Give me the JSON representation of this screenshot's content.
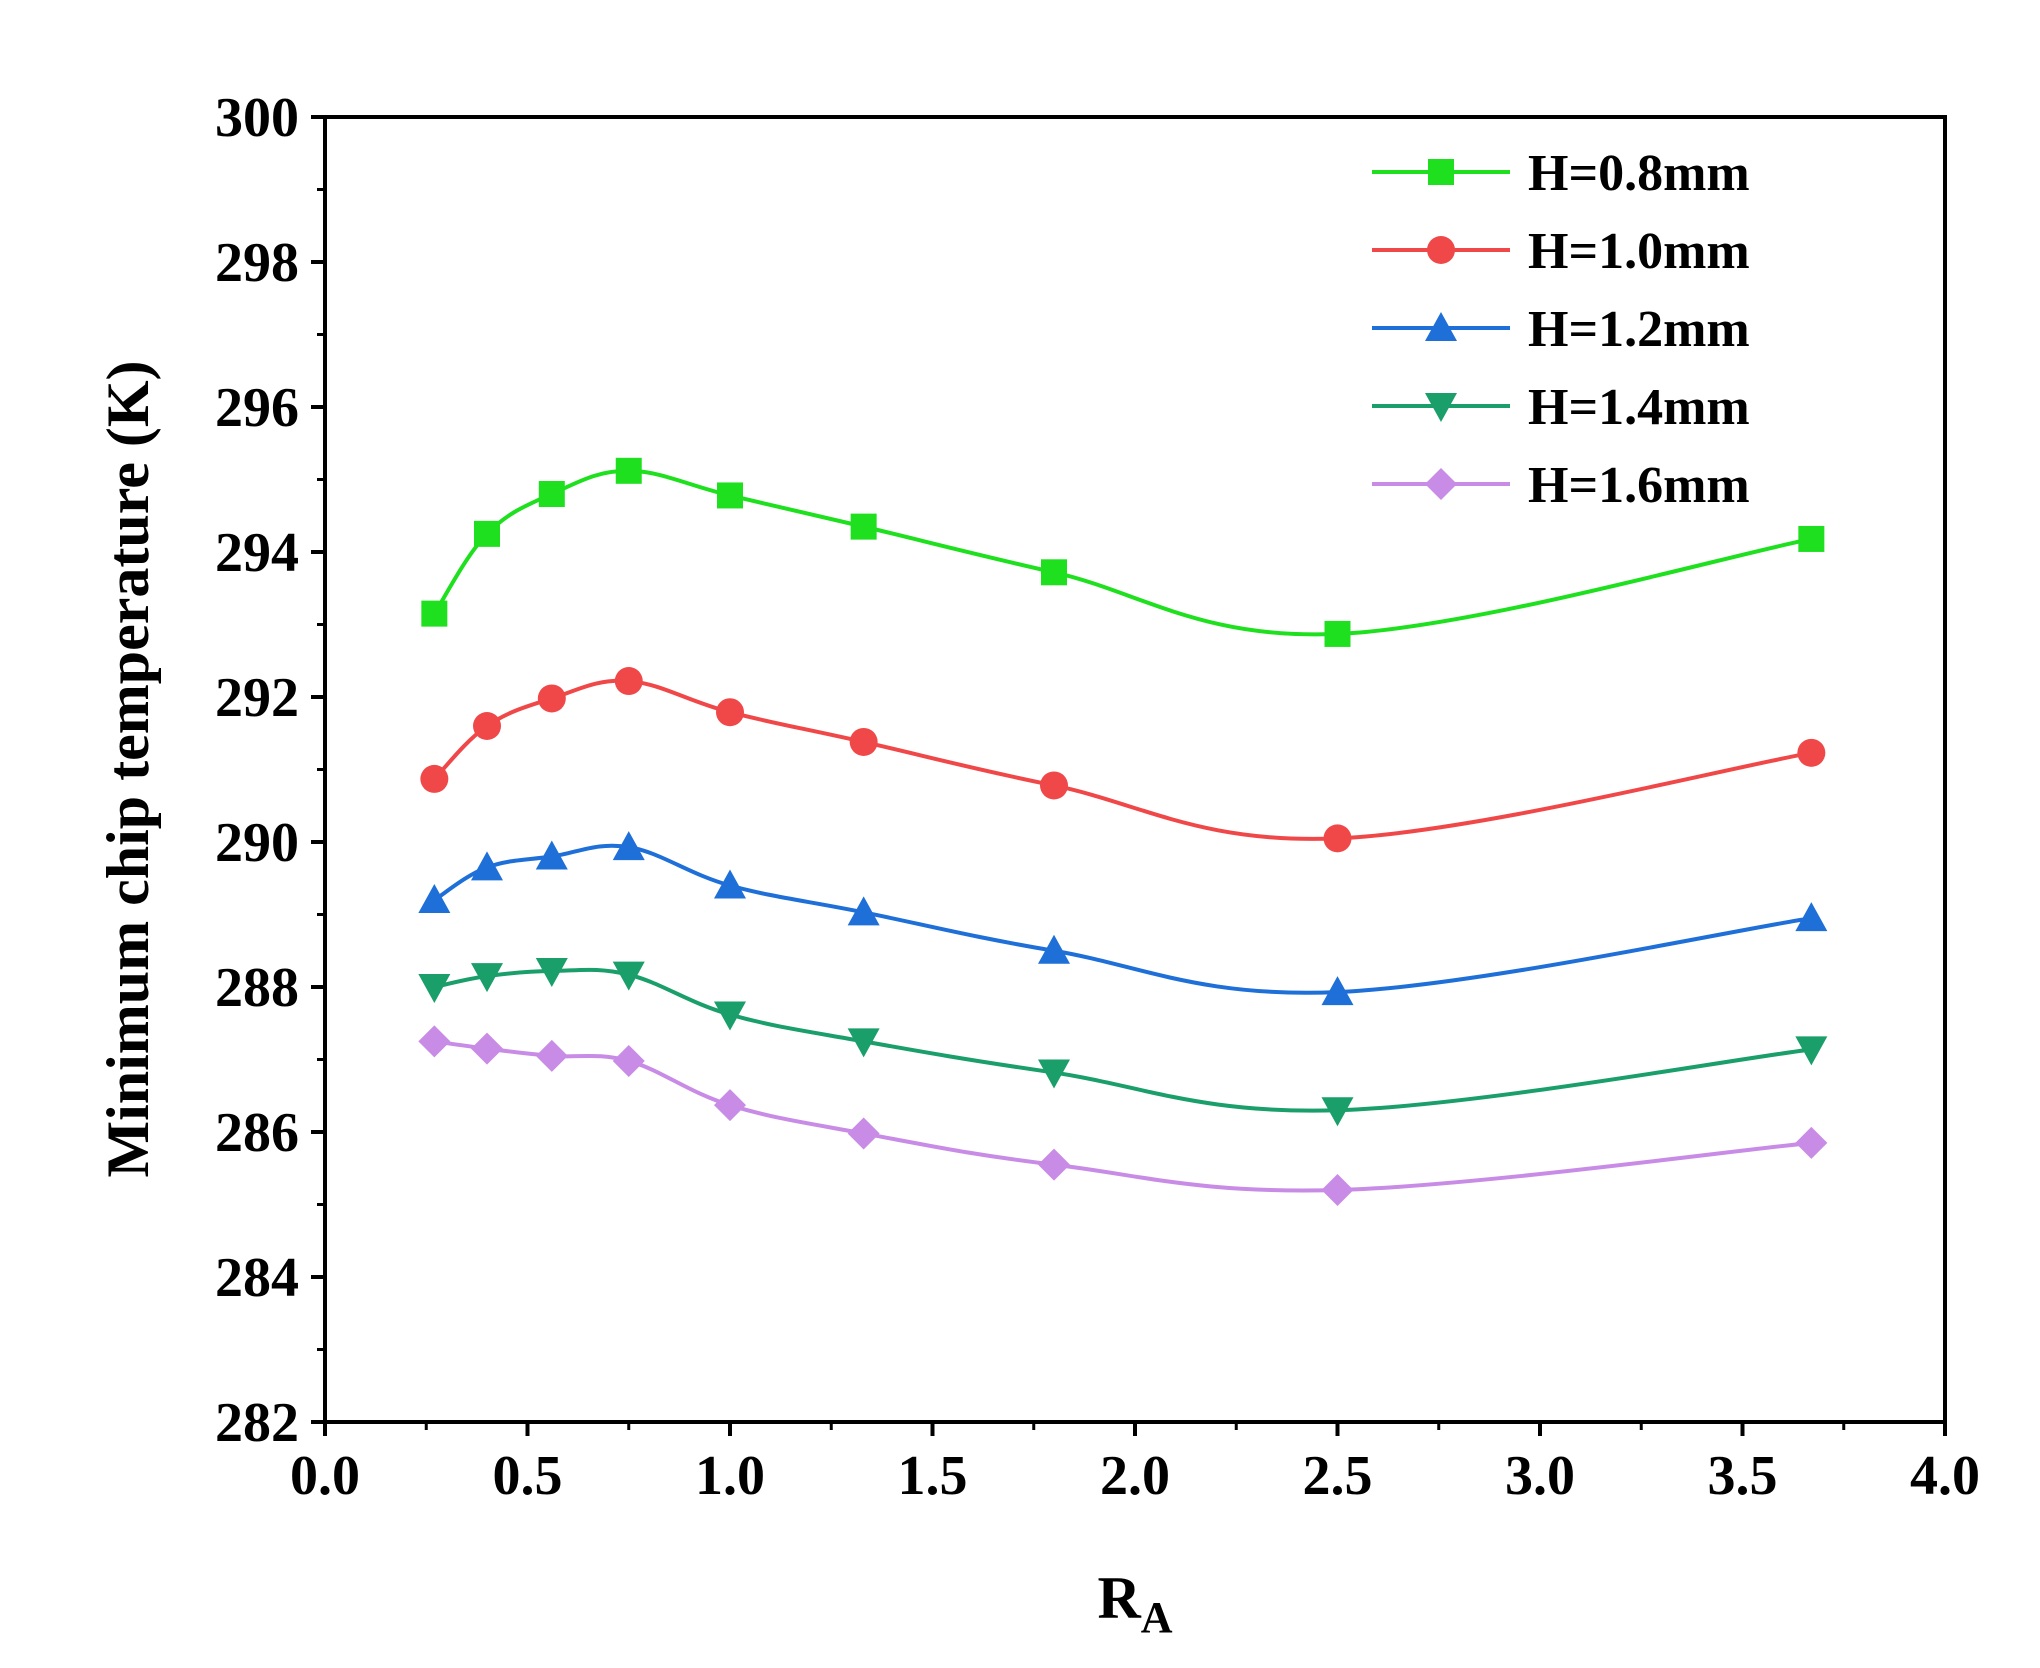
{
  "chart_data": {
    "type": "line",
    "title": "",
    "xlabel": "R",
    "xlabel_subscript": "A",
    "ylabel": "Minimum chip temperature (K)",
    "xlim": [
      0.0,
      4.0
    ],
    "ylim": [
      282,
      300
    ],
    "xticks": [
      "0.0",
      "0.5",
      "1.0",
      "1.5",
      "2.0",
      "2.5",
      "3.0",
      "3.5",
      "4.0"
    ],
    "yticks": [
      "282",
      "284",
      "286",
      "288",
      "290",
      "292",
      "294",
      "296",
      "298",
      "300"
    ],
    "grid": false,
    "legend_position": "top-right",
    "x": [
      0.27,
      0.4,
      0.56,
      0.75,
      1.0,
      1.33,
      1.8,
      2.5,
      3.67
    ],
    "series": [
      {
        "name": "H=0.8mm",
        "color": "#1EE01E",
        "marker": "square",
        "values": [
          293.15,
          294.25,
          294.8,
          295.12,
          294.78,
          294.35,
          293.72,
          292.87,
          294.18
        ]
      },
      {
        "name": "H=1.0mm",
        "color": "#F04848",
        "marker": "circle",
        "values": [
          290.87,
          291.6,
          291.98,
          292.22,
          291.79,
          291.38,
          290.78,
          290.05,
          291.23
        ]
      },
      {
        "name": "H=1.2mm",
        "color": "#1E6FD8",
        "marker": "triangle-up",
        "values": [
          289.2,
          289.65,
          289.8,
          289.93,
          289.4,
          289.03,
          288.5,
          287.93,
          288.95
        ]
      },
      {
        "name": "H=1.4mm",
        "color": "#1A9E6A",
        "marker": "triangle-down",
        "values": [
          288.0,
          288.15,
          288.22,
          288.17,
          287.62,
          287.25,
          286.82,
          286.3,
          287.14
        ]
      },
      {
        "name": "H=1.6mm",
        "color": "#C88BE6",
        "marker": "diamond",
        "values": [
          287.25,
          287.15,
          287.05,
          286.98,
          286.37,
          285.98,
          285.55,
          285.2,
          285.85
        ]
      }
    ]
  }
}
